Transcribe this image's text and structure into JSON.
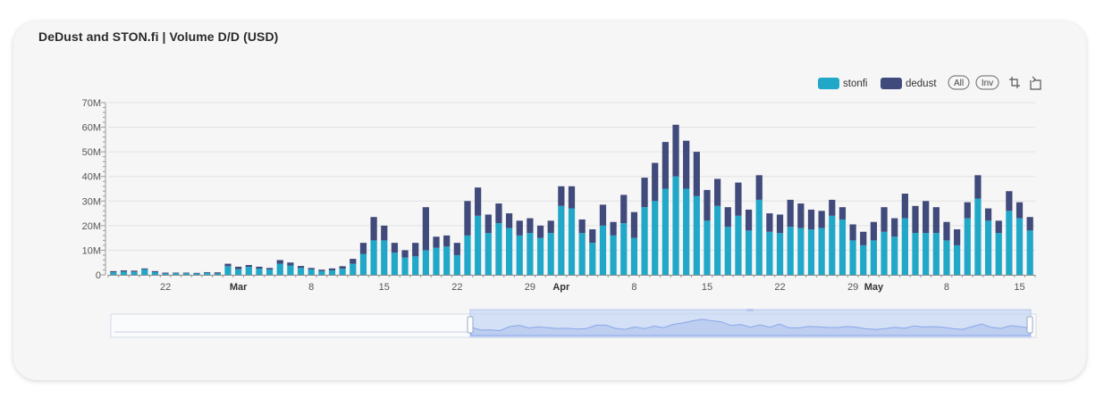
{
  "widget": {
    "title": "DeDust and STON.fi | Volume D/D (USD)"
  },
  "toolbar": {
    "all_label": "All",
    "inv_label": "Inv"
  },
  "chart_data": {
    "type": "bar",
    "stacked": true,
    "title": "DeDust and STON.fi | Volume D/D (USD)",
    "xlabel": "",
    "ylabel": "",
    "ylim": [
      0,
      70
    ],
    "y_unit": "M",
    "yticks": [
      "0",
      "10M",
      "20M",
      "30M",
      "40M",
      "50M",
      "60M",
      "70M"
    ],
    "grid": true,
    "legend_position": "top-right",
    "colors": {
      "stonfi": "#21a8c8",
      "dedust": "#404a7b"
    },
    "x_tick_labels": [
      {
        "day": 5,
        "label": "22"
      },
      {
        "day": 12,
        "label": "Mar",
        "bold": true
      },
      {
        "day": 19,
        "label": "8"
      },
      {
        "day": 26,
        "label": "15"
      },
      {
        "day": 33,
        "label": "22"
      },
      {
        "day": 40,
        "label": "29"
      },
      {
        "day": 43,
        "label": "Apr",
        "bold": true
      },
      {
        "day": 50,
        "label": "8"
      },
      {
        "day": 57,
        "label": "15"
      },
      {
        "day": 64,
        "label": "22"
      },
      {
        "day": 71,
        "label": "29"
      },
      {
        "day": 73,
        "label": "May",
        "bold": true
      },
      {
        "day": 80,
        "label": "8"
      },
      {
        "day": 87,
        "label": "15"
      }
    ],
    "series": [
      {
        "name": "stonfi",
        "values": [
          1,
          1.3,
          1.2,
          2.2,
          1.1,
          0.5,
          0.6,
          0.6,
          0.5,
          0.8,
          0.5,
          3.5,
          2.3,
          3.2,
          2.5,
          2.2,
          4.5,
          3.8,
          2.8,
          2.2,
          1.5,
          1.8,
          2.5,
          4.5,
          8.5,
          14,
          14,
          9,
          7,
          7.5,
          10,
          11,
          11.5,
          8,
          16,
          24,
          17,
          21,
          19,
          16,
          17,
          15,
          17,
          28,
          27,
          17,
          13,
          20,
          16,
          21,
          15,
          27.5,
          30,
          35,
          40,
          35,
          32,
          22,
          28,
          19.5,
          24,
          18,
          30.5,
          17.5,
          17,
          19.5,
          19,
          18.5,
          19,
          24,
          22.5,
          14,
          12,
          14,
          17.5,
          15.5,
          23,
          17,
          17,
          17,
          14,
          12,
          23,
          31,
          22,
          17,
          26,
          23,
          18
        ]
      },
      {
        "name": "dedust",
        "values": [
          0.5,
          0.5,
          0.5,
          0.4,
          0.4,
          0.4,
          0.3,
          0.3,
          0.3,
          0.3,
          0.5,
          1.0,
          1.0,
          0.8,
          0.8,
          0.6,
          1.5,
          1.2,
          0.8,
          0.6,
          0.6,
          0.8,
          1.0,
          2.0,
          4.5,
          9.5,
          6.0,
          4.0,
          3.0,
          5.5,
          17.5,
          4.5,
          4.5,
          5.0,
          14.0,
          11.5,
          7.5,
          8.0,
          6.0,
          6.0,
          6.0,
          5.0,
          5.0,
          8.0,
          9.0,
          5.5,
          5.5,
          8.5,
          5.5,
          11.5,
          10.5,
          12.0,
          15.5,
          19.0,
          21.0,
          19.5,
          18.0,
          12.5,
          11.0,
          8.0,
          13.5,
          8.5,
          10.0,
          7.5,
          7.5,
          11.0,
          10.0,
          8.0,
          7.0,
          6.5,
          5.0,
          6.5,
          5.5,
          7.5,
          10.0,
          7.5,
          10.0,
          11.0,
          13.0,
          10.5,
          7.5,
          6.5,
          6.5,
          9.5,
          5.0,
          5.0,
          8.0,
          6.5,
          5.5
        ]
      }
    ]
  }
}
